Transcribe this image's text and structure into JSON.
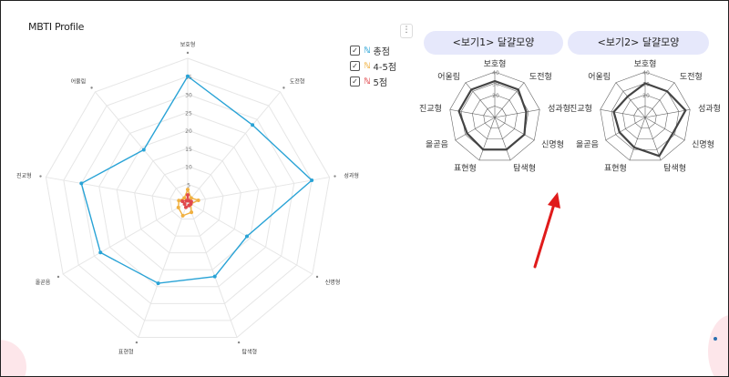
{
  "main_chart": {
    "title": "MBTI Profile",
    "menu_glyph": "⋮",
    "axes": [
      "보호형",
      "도전형",
      "성과형",
      "신명형",
      "탐색형",
      "표현형",
      "올곧음",
      "진교형",
      "어울림"
    ],
    "ticks": [
      "5",
      "10",
      "15",
      "20",
      "25",
      "30",
      "35"
    ],
    "legend": [
      {
        "label": "총점",
        "color": "#29a3d6"
      },
      {
        "label": "4-5점",
        "color": "#f0b040"
      },
      {
        "label": "5점",
        "color": "#e0484c"
      }
    ],
    "check_glyph": "✓",
    "series_glyph": "ℕ"
  },
  "chart_data": [
    {
      "type": "radar",
      "title": "MBTI Profile",
      "categories": [
        "보호형",
        "도전형",
        "성과형",
        "신명형",
        "탐색형",
        "표현형",
        "올곧음",
        "진교형",
        "어울림"
      ],
      "rlim": [
        0,
        40
      ],
      "ticks": [
        5,
        10,
        15,
        20,
        25,
        30,
        35
      ],
      "series": [
        {
          "name": "총점",
          "color": "#29a3d6",
          "values": [
            35,
            28,
            35,
            19,
            22,
            24,
            28,
            30,
            19
          ]
        },
        {
          "name": "4-5점",
          "color": "#f0b040",
          "values": [
            3.5,
            1.5,
            3,
            1,
            3,
            4,
            3,
            2.5,
            1.5
          ]
        },
        {
          "name": "5점",
          "color": "#e0484c",
          "values": [
            2,
            0.5,
            1,
            1,
            1,
            1.5,
            1,
            1.5,
            0.5
          ]
        }
      ]
    },
    {
      "type": "radar",
      "title": "<보기1> 달걀모양",
      "categories": [
        "보호형",
        "도전형",
        "성과형",
        "신명형",
        "탐색형",
        "표현형",
        "올곧음",
        "진교형",
        "어울림"
      ],
      "rlim": [
        0,
        40
      ],
      "ticks": [
        20,
        30,
        40
      ],
      "series": [
        {
          "name": "",
          "color": "#444",
          "values": [
            32,
            32,
            28,
            30,
            30,
            30,
            28,
            32,
            32
          ]
        }
      ]
    },
    {
      "type": "radar",
      "title": "<보기2> 달걀모양",
      "categories": [
        "보호형",
        "도전형",
        "성과형",
        "신명형",
        "탐색형",
        "표현형",
        "올곧음",
        "진교형",
        "어울림"
      ],
      "rlim": [
        0,
        40
      ],
      "ticks": [
        20,
        30,
        40
      ],
      "series": [
        {
          "name": "",
          "color": "#444",
          "values": [
            30,
            30,
            36,
            28,
            36,
            28,
            26,
            28,
            24
          ]
        }
      ]
    }
  ],
  "example1": {
    "pill": "<보기1> 달걀모양"
  },
  "example2": {
    "pill": "<보기2> 달걀모양"
  },
  "small_axes": [
    "보호형",
    "도전형",
    "성과형",
    "신명형",
    "탐색형",
    "표현형",
    "올곧음",
    "진교형",
    "어울림"
  ],
  "small_ticks": [
    "20",
    "30",
    "40"
  ],
  "colors": {
    "arrow": "#e01b1b",
    "grid": "#e6e6e6",
    "pill_bg": "#e6e8fb"
  }
}
